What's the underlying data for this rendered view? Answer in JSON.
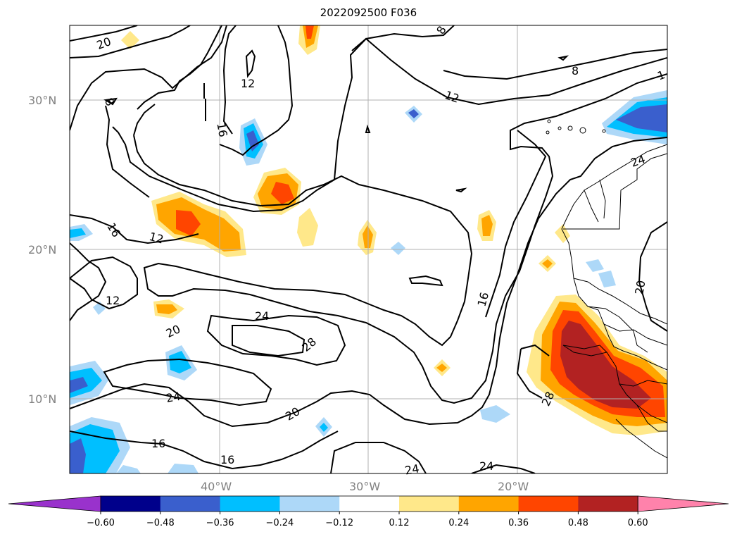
{
  "title": "2022092500 F036",
  "lat_labels": [
    "30°N",
    "20°N",
    "10°N"
  ],
  "lon_labels": [
    "40°W",
    "30°W",
    "20°W"
  ],
  "colorbar": {
    "ticks": [
      "−0.60",
      "−0.48",
      "−0.36",
      "−0.24",
      "−0.12",
      "0.12",
      "0.24",
      "0.36",
      "0.48",
      "0.60"
    ],
    "colors": [
      "#9932cc",
      "#00008b",
      "#3a5fcd",
      "#00bfff",
      "#add8f8",
      "#ffffff",
      "#ffe88a",
      "#ffa500",
      "#ff4500",
      "#b22222",
      "#ff82ab"
    ]
  },
  "contour_labels": [
    "20",
    "12",
    "8",
    "8",
    "16",
    "12",
    "16",
    "12",
    "16",
    "12",
    "20",
    "24",
    "28",
    "24",
    "20",
    "16",
    "24",
    "24",
    "16",
    "8",
    "20",
    "28",
    "24",
    "1"
  ],
  "colors": {
    "contour": "#000000",
    "grid": "#b0b0b0",
    "coast": "#000000"
  }
}
